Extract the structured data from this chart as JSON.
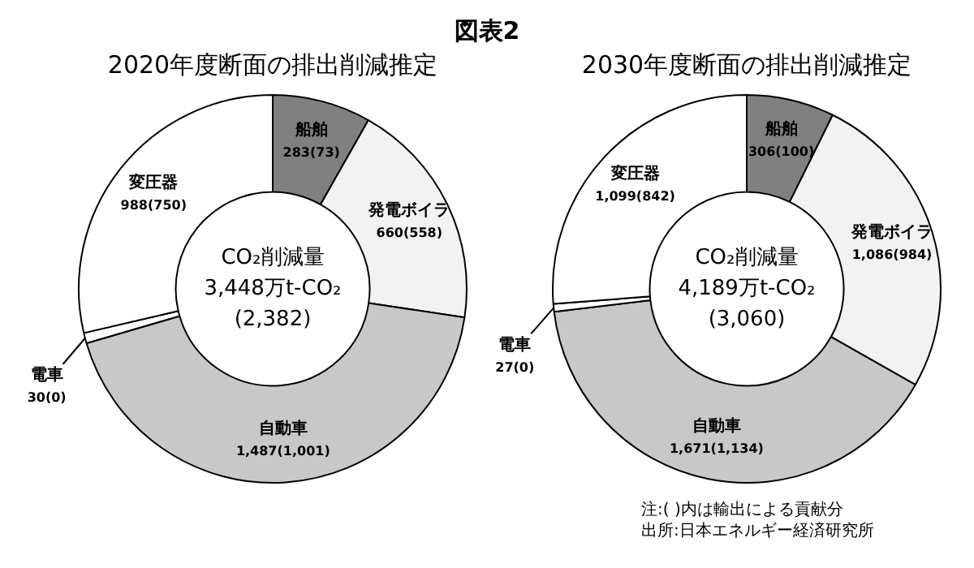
{
  "chart_data": [
    {
      "type": "donut",
      "title": "2020年度断面の排出削減推定",
      "categories": [
        "船舶",
        "発電ボイラ",
        "自動車",
        "電車",
        "変圧器"
      ],
      "values": [
        283,
        660,
        1487,
        30,
        988
      ],
      "colors": [
        "#808080",
        "#f2f2f2",
        "#c8c8c8",
        "#ffffff",
        "#ffffff"
      ],
      "value_labels": [
        "283(73)",
        "660(558)",
        "1,487(1,001)",
        "30(0)",
        "988(750)"
      ],
      "legend": false,
      "annotations": [
        "CO₂削減量",
        "3,448万t-CO₂",
        "(2,382)",
        "図表2"
      ]
    },
    {
      "type": "donut",
      "title": "2030年度断面の排出削減推定",
      "categories": [
        "船舶",
        "発電ボイラ",
        "自動車",
        "電車",
        "変圧器"
      ],
      "values": [
        306,
        1086,
        1671,
        27,
        1099
      ],
      "colors": [
        "#808080",
        "#f2f2f2",
        "#c8c8c8",
        "#ffffff",
        "#ffffff"
      ],
      "value_labels": [
        "306(100)",
        "1,086(984)",
        "1,671(1,134)",
        "27(0)",
        "1,099(842)"
      ],
      "legend": false,
      "annotations": [
        "CO₂削減量",
        "4,189万t-CO₂",
        "(3,060)",
        "注:( )内は輸出による貢献分",
        "出所:日本エネルギー経済研究所"
      ]
    }
  ]
}
